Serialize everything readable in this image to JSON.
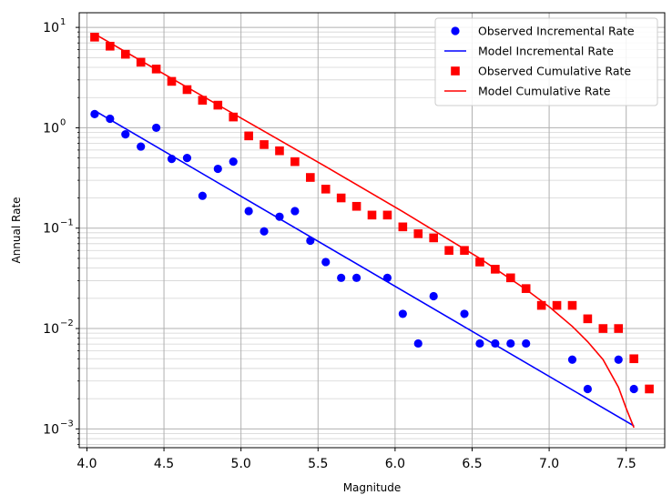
{
  "chart_data": {
    "type": "scatter",
    "title": "",
    "xlabel": "Magnitude",
    "ylabel": "Annual Rate",
    "xlim": [
      3.95,
      7.75
    ],
    "ylim": [
      0.00065,
      14
    ],
    "yscale": "log",
    "grid": true,
    "legend_position": "top-right",
    "x_ticks": [
      4.0,
      4.5,
      5.0,
      5.5,
      6.0,
      6.5,
      7.0,
      7.5
    ],
    "x_tick_labels": [
      "4.0",
      "4.5",
      "5.0",
      "5.5",
      "6.0",
      "6.5",
      "7.0",
      "7.5"
    ],
    "y_ticks": [
      {
        "value": 0.001,
        "base": "10",
        "exp": "−3"
      },
      {
        "value": 0.01,
        "base": "10",
        "exp": "−2"
      },
      {
        "value": 0.1,
        "base": "10",
        "exp": "−1"
      },
      {
        "value": 1,
        "base": "10",
        "exp": "0"
      },
      {
        "value": 10,
        "base": "10",
        "exp": "1"
      }
    ],
    "series": [
      {
        "name": "Observed Incremental Rate",
        "kind": "scatter",
        "marker": "circle",
        "color": "#0000ff",
        "points": [
          [
            4.05,
            1.37
          ],
          [
            4.15,
            1.23
          ],
          [
            4.25,
            0.86
          ],
          [
            4.35,
            0.65
          ],
          [
            4.45,
            1.0
          ],
          [
            4.55,
            0.49
          ],
          [
            4.65,
            0.5
          ],
          [
            4.75,
            0.21
          ],
          [
            4.85,
            0.39
          ],
          [
            4.95,
            0.46
          ],
          [
            5.05,
            0.148
          ],
          [
            5.15,
            0.093
          ],
          [
            5.25,
            0.13
          ],
          [
            5.35,
            0.148
          ],
          [
            5.45,
            0.075
          ],
          [
            5.55,
            0.046
          ],
          [
            5.65,
            0.032
          ],
          [
            5.75,
            0.032
          ],
          [
            5.95,
            0.032
          ],
          [
            6.05,
            0.014
          ],
          [
            6.15,
            0.0071
          ],
          [
            6.25,
            0.021
          ],
          [
            6.45,
            0.014
          ],
          [
            6.55,
            0.0071
          ],
          [
            6.65,
            0.0071
          ],
          [
            6.75,
            0.0071
          ],
          [
            6.85,
            0.0071
          ],
          [
            7.15,
            0.0049
          ],
          [
            7.25,
            0.0025
          ],
          [
            7.45,
            0.0049
          ],
          [
            7.55,
            0.0025
          ]
        ]
      },
      {
        "name": "Model Incremental Rate",
        "kind": "line",
        "color": "#0000ff",
        "points": [
          [
            4.05,
            1.48
          ],
          [
            7.55,
            0.00107
          ]
        ]
      },
      {
        "name": "Observed Cumulative Rate",
        "kind": "scatter",
        "marker": "square",
        "color": "#ff0000",
        "points": [
          [
            4.05,
            8.0
          ],
          [
            4.15,
            6.5
          ],
          [
            4.25,
            5.4
          ],
          [
            4.35,
            4.5
          ],
          [
            4.45,
            3.85
          ],
          [
            4.55,
            2.9
          ],
          [
            4.65,
            2.4
          ],
          [
            4.75,
            1.88
          ],
          [
            4.85,
            1.68
          ],
          [
            4.95,
            1.28
          ],
          [
            5.05,
            0.83
          ],
          [
            5.15,
            0.68
          ],
          [
            5.25,
            0.59
          ],
          [
            5.35,
            0.46
          ],
          [
            5.45,
            0.32
          ],
          [
            5.55,
            0.245
          ],
          [
            5.65,
            0.2
          ],
          [
            5.75,
            0.165
          ],
          [
            5.85,
            0.135
          ],
          [
            5.95,
            0.135
          ],
          [
            6.05,
            0.103
          ],
          [
            6.15,
            0.088
          ],
          [
            6.25,
            0.08
          ],
          [
            6.35,
            0.06
          ],
          [
            6.45,
            0.06
          ],
          [
            6.55,
            0.046
          ],
          [
            6.65,
            0.039
          ],
          [
            6.75,
            0.032
          ],
          [
            6.85,
            0.025
          ],
          [
            6.95,
            0.017
          ],
          [
            7.05,
            0.017
          ],
          [
            7.15,
            0.017
          ],
          [
            7.25,
            0.0125
          ],
          [
            7.35,
            0.01
          ],
          [
            7.45,
            0.01
          ],
          [
            7.55,
            0.005
          ],
          [
            7.65,
            0.0025
          ]
        ]
      },
      {
        "name": "Model Cumulative Rate",
        "kind": "line",
        "color": "#ff0000",
        "points": [
          [
            4.05,
            8.6
          ],
          [
            4.55,
            3.1
          ],
          [
            5.05,
            1.13
          ],
          [
            5.55,
            0.41
          ],
          [
            6.05,
            0.146
          ],
          [
            6.55,
            0.05
          ],
          [
            6.85,
            0.0245
          ],
          [
            7.0,
            0.0165
          ],
          [
            7.15,
            0.0105
          ],
          [
            7.25,
            0.0074
          ],
          [
            7.35,
            0.0049
          ],
          [
            7.45,
            0.0026
          ],
          [
            7.5,
            0.0016
          ],
          [
            7.55,
            0.00103
          ]
        ]
      }
    ]
  }
}
